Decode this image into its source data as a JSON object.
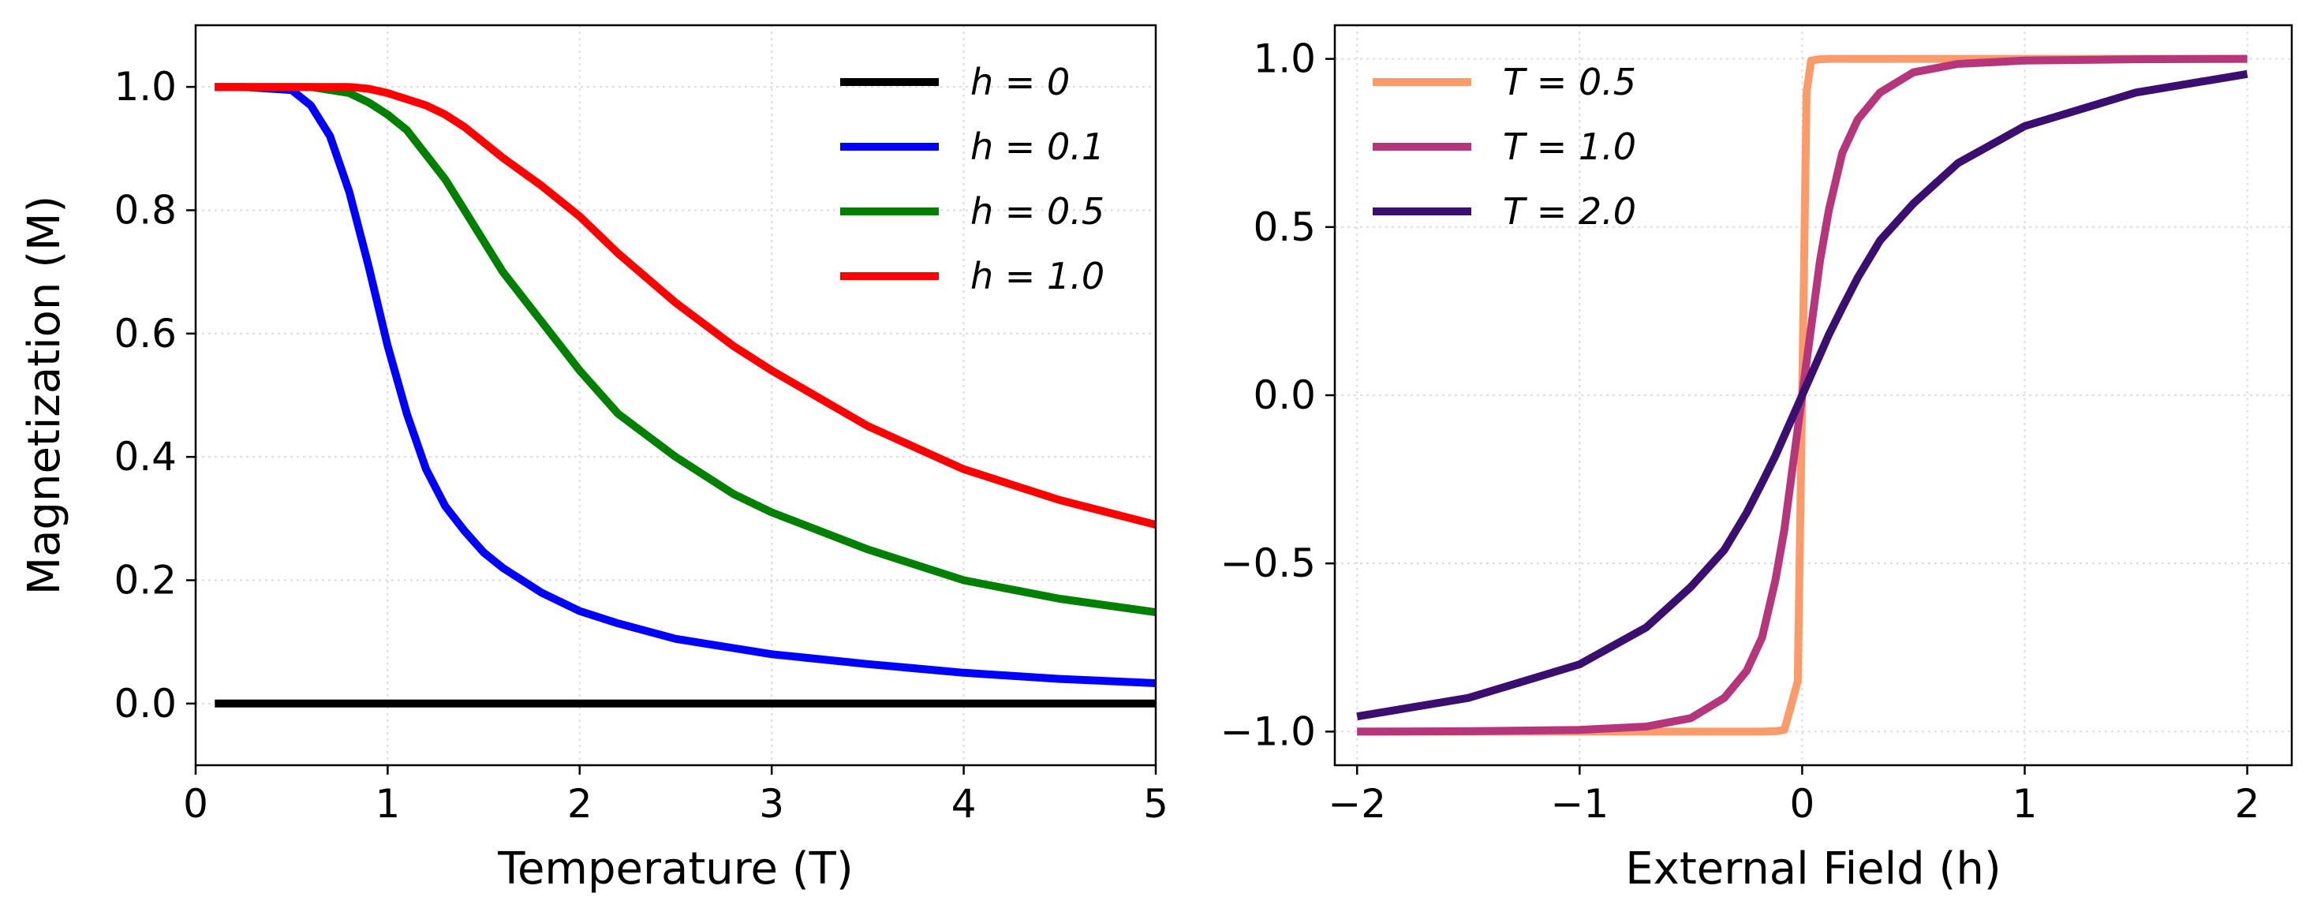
{
  "chart_data": [
    {
      "type": "line",
      "xlabel": "Temperature (T)",
      "ylabel": "Magnetization (M)",
      "xlim": [
        0,
        5
      ],
      "ylim": [
        -0.1,
        1.1
      ],
      "xticks": [
        0,
        1,
        2,
        3,
        4,
        5
      ],
      "xtick_labels": [
        "0",
        "1",
        "2",
        "3",
        "4",
        "5"
      ],
      "yticks": [
        0.0,
        0.2,
        0.4,
        0.6,
        0.8,
        1.0
      ],
      "ytick_labels": [
        "0.0",
        "0.2",
        "0.4",
        "0.6",
        "0.8",
        "1.0"
      ],
      "grid": true,
      "legend_position": "top-right",
      "x": [
        0.1,
        0.25,
        0.5,
        0.6,
        0.7,
        0.8,
        0.9,
        1.0,
        1.1,
        1.2,
        1.3,
        1.4,
        1.5,
        1.6,
        1.8,
        2.0,
        2.2,
        2.5,
        2.8,
        3.0,
        3.5,
        4.0,
        4.5,
        5.0
      ],
      "series": [
        {
          "name": "h = 0",
          "color": "#000000",
          "values": [
            0,
            0,
            0,
            0,
            0,
            0,
            0,
            0,
            0,
            0,
            0,
            0,
            0,
            0,
            0,
            0,
            0,
            0,
            0,
            0,
            0,
            0,
            0,
            0
          ]
        },
        {
          "name": "h = 0.1",
          "color": "#0000ff",
          "values": [
            1.0,
            1.0,
            0.995,
            0.97,
            0.92,
            0.83,
            0.71,
            0.58,
            0.47,
            0.38,
            0.32,
            0.28,
            0.245,
            0.22,
            0.18,
            0.15,
            0.13,
            0.105,
            0.09,
            0.08,
            0.064,
            0.05,
            0.04,
            0.033
          ]
        },
        {
          "name": "h = 0.5",
          "color": "#008000",
          "values": [
            1.0,
            1.0,
            1.0,
            1.0,
            0.995,
            0.99,
            0.975,
            0.955,
            0.93,
            0.89,
            0.85,
            0.8,
            0.75,
            0.7,
            0.62,
            0.54,
            0.47,
            0.4,
            0.34,
            0.31,
            0.25,
            0.2,
            0.17,
            0.148
          ]
        },
        {
          "name": "h = 1.0",
          "color": "#ff0000",
          "values": [
            1.0,
            1.0,
            1.0,
            1.0,
            1.0,
            1.0,
            0.997,
            0.99,
            0.98,
            0.97,
            0.955,
            0.935,
            0.91,
            0.885,
            0.84,
            0.79,
            0.73,
            0.65,
            0.58,
            0.54,
            0.45,
            0.38,
            0.33,
            0.29
          ]
        }
      ]
    },
    {
      "type": "line",
      "xlabel": "External Field (h)",
      "ylabel": "",
      "xlim": [
        -2.1,
        2.2
      ],
      "ylim": [
        -1.1,
        1.1
      ],
      "xticks": [
        -2,
        -1,
        0,
        1,
        2
      ],
      "xtick_labels": [
        "−2",
        "−1",
        "0",
        "1",
        "2"
      ],
      "yticks": [
        -1.0,
        -0.5,
        0.0,
        0.5,
        1.0
      ],
      "ytick_labels": [
        "−1.0",
        "−0.5",
        "0.0",
        "0.5",
        "1.0"
      ],
      "grid": true,
      "legend_position": "top-left",
      "x": [
        -2.0,
        -1.5,
        -1.0,
        -0.7,
        -0.5,
        -0.35,
        -0.25,
        -0.18,
        -0.12,
        -0.08,
        -0.04,
        -0.02,
        0.0,
        0.02,
        0.04,
        0.08,
        0.12,
        0.18,
        0.25,
        0.35,
        0.5,
        0.7,
        1.0,
        1.5,
        2.0
      ],
      "series": [
        {
          "name": "T = 0.5",
          "color": "#fb9b6a",
          "values": [
            -1.0,
            -1.0,
            -1.0,
            -1.0,
            -1.0,
            -1.0,
            -1.0,
            -1.0,
            -0.999,
            -0.995,
            -0.9,
            -0.85,
            0.0,
            0.9,
            0.995,
            0.999,
            1.0,
            1.0,
            1.0,
            1.0,
            1.0,
            1.0,
            1.0,
            1.0,
            1.0
          ]
        },
        {
          "name": "T = 1.0",
          "color": "#b5367a",
          "values": [
            -1.0,
            -0.999,
            -0.995,
            -0.985,
            -0.96,
            -0.9,
            -0.82,
            -0.72,
            -0.55,
            -0.4,
            -0.2,
            -0.1,
            0.0,
            0.1,
            0.2,
            0.4,
            0.55,
            0.72,
            0.82,
            0.9,
            0.96,
            0.985,
            0.995,
            0.999,
            1.0
          ]
        },
        {
          "name": "T = 2.0",
          "color": "#3b0f70",
          "values": [
            -0.955,
            -0.9,
            -0.8,
            -0.69,
            -0.57,
            -0.46,
            -0.35,
            -0.26,
            -0.18,
            -0.12,
            -0.06,
            -0.03,
            0.0,
            0.03,
            0.06,
            0.12,
            0.18,
            0.26,
            0.35,
            0.46,
            0.57,
            0.69,
            0.8,
            0.9,
            0.955
          ]
        }
      ]
    }
  ]
}
